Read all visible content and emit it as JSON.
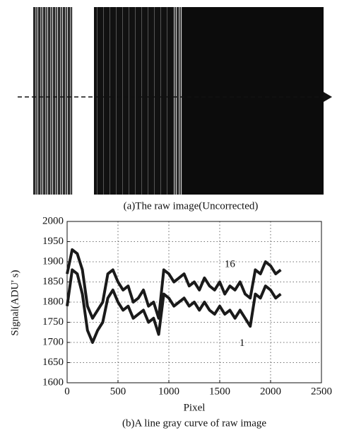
{
  "figure": {
    "caption_a": "(a)The raw image(Uncorrected)",
    "caption_b": "(b)A line gray curve of raw image"
  },
  "chart_data": {
    "type": "line",
    "xlabel": "Pixel",
    "ylabel": "Signal(ADU' s)",
    "x": [
      0,
      50,
      100,
      150,
      200,
      250,
      300,
      350,
      400,
      450,
      500,
      550,
      600,
      650,
      700,
      750,
      800,
      850,
      900,
      950,
      1000,
      1050,
      1100,
      1150,
      1200,
      1250,
      1300,
      1350,
      1400,
      1450,
      1500,
      1550,
      1600,
      1650,
      1700,
      1750,
      1800,
      1850,
      1900,
      1950,
      2000,
      2050,
      2100
    ],
    "series": [
      {
        "name": "16",
        "color": "#1a1a1a",
        "values": [
          1870,
          1930,
          1920,
          1880,
          1790,
          1760,
          1780,
          1800,
          1870,
          1880,
          1850,
          1830,
          1840,
          1800,
          1810,
          1830,
          1790,
          1800,
          1760,
          1880,
          1870,
          1850,
          1860,
          1870,
          1840,
          1850,
          1830,
          1860,
          1840,
          1830,
          1850,
          1820,
          1840,
          1830,
          1850,
          1820,
          1810,
          1880,
          1870,
          1900,
          1890,
          1870,
          1880
        ]
      },
      {
        "name": "1",
        "color": "#1a1a1a",
        "values": [
          1790,
          1880,
          1870,
          1820,
          1730,
          1700,
          1730,
          1750,
          1810,
          1830,
          1800,
          1780,
          1790,
          1760,
          1770,
          1780,
          1750,
          1760,
          1720,
          1820,
          1810,
          1790,
          1800,
          1810,
          1790,
          1800,
          1780,
          1800,
          1780,
          1770,
          1790,
          1770,
          1780,
          1760,
          1780,
          1760,
          1740,
          1820,
          1810,
          1840,
          1830,
          1810,
          1820
        ]
      }
    ],
    "annotations": [
      {
        "text": "16",
        "x": 1600,
        "y": 1893
      },
      {
        "text": "1",
        "x": 1720,
        "y": 1697
      }
    ],
    "xlim": [
      0,
      2500
    ],
    "xticks": [
      0,
      500,
      1000,
      1500,
      2000,
      2500
    ],
    "ylim": [
      1600,
      2000
    ],
    "yticks": [
      1600,
      1650,
      1700,
      1750,
      1800,
      1850,
      1900,
      1950,
      2000
    ],
    "grid": true
  }
}
